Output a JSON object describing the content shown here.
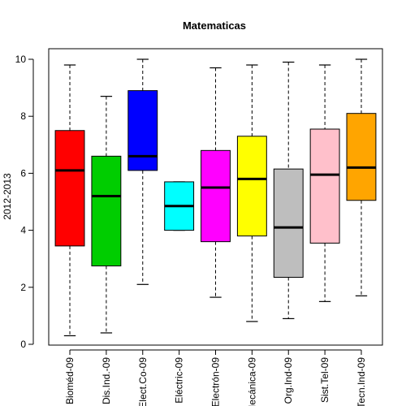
{
  "chart_data": {
    "type": "boxplot",
    "title": "Matematicas",
    "xlabel": "",
    "ylabel": "2012-2013",
    "ylim": [
      0,
      10
    ],
    "yticks": [
      0,
      2,
      4,
      6,
      8,
      10
    ],
    "grid": false,
    "legend": "none",
    "categories": [
      "Bioméd-09",
      "Dis.Ind.-09",
      "Elect.Co-09",
      "Eléctric-09",
      "Electrón-09",
      "Mecánica-09",
      "Org.Ind-09",
      "Sist.Tel-09",
      "Tecn.Ind-09"
    ],
    "boxes": [
      {
        "category": "Bioméd-09",
        "min": 0.3,
        "q1": 3.45,
        "median": 6.1,
        "q3": 7.5,
        "max": 9.8,
        "color": "#ff0000"
      },
      {
        "category": "Dis.Ind.-09",
        "min": 0.4,
        "q1": 2.75,
        "median": 5.2,
        "q3": 6.6,
        "max": 8.7,
        "color": "#00cd00"
      },
      {
        "category": "Elect.Co-09",
        "min": 2.1,
        "q1": 6.1,
        "median": 6.6,
        "q3": 8.9,
        "max": 10.0,
        "color": "#0000ff"
      },
      {
        "category": "Eléctric-09",
        "min": 4.0,
        "q1": 4.0,
        "median": 4.85,
        "q3": 5.7,
        "max": 5.7,
        "color": "#00ffff"
      },
      {
        "category": "Electrón-09",
        "min": 1.65,
        "q1": 3.6,
        "median": 5.5,
        "q3": 6.8,
        "max": 9.7,
        "color": "#ff00ff"
      },
      {
        "category": "Mecánica-09",
        "min": 0.8,
        "q1": 3.8,
        "median": 5.8,
        "q3": 7.3,
        "max": 9.8,
        "color": "#ffff00"
      },
      {
        "category": "Org.Ind-09",
        "min": 0.9,
        "q1": 2.35,
        "median": 4.1,
        "q3": 6.15,
        "max": 9.9,
        "color": "#bebebe"
      },
      {
        "category": "Sist.Tel-09",
        "min": 1.5,
        "q1": 3.55,
        "median": 5.95,
        "q3": 7.55,
        "max": 9.8,
        "color": "#ffc0cb"
      },
      {
        "category": "Tecn.Ind-09",
        "min": 1.7,
        "q1": 5.05,
        "median": 6.2,
        "q3": 8.1,
        "max": 10.0,
        "color": "#ffa500"
      }
    ]
  }
}
